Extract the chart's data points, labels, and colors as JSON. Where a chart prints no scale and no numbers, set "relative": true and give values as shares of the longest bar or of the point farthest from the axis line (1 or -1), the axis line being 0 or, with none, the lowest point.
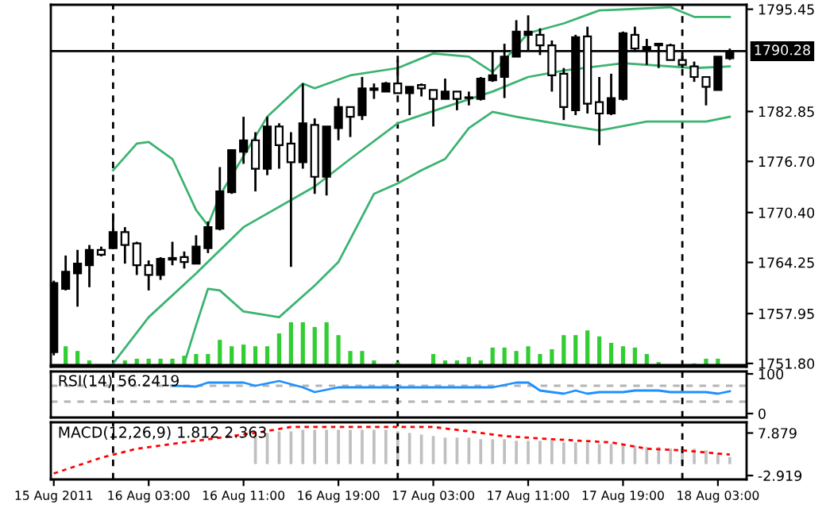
{
  "chart_data": [
    {
      "type": "candlestick",
      "x": [
        "2011-08-15T19:00",
        "2011-08-15T20:00",
        "2011-08-15T21:00",
        "2011-08-15T22:00",
        "2011-08-15T23:00",
        "2011-08-16T00:00",
        "2011-08-16T01:00",
        "2011-08-16T02:00",
        "2011-08-16T03:00",
        "2011-08-16T04:00",
        "2011-08-16T05:00",
        "2011-08-16T06:00",
        "2011-08-16T07:00",
        "2011-08-16T08:00",
        "2011-08-16T09:00",
        "2011-08-16T10:00",
        "2011-08-16T11:00",
        "2011-08-16T12:00",
        "2011-08-16T13:00",
        "2011-08-16T14:00",
        "2011-08-16T15:00",
        "2011-08-16T16:00",
        "2011-08-16T17:00",
        "2011-08-16T18:00",
        "2011-08-16T19:00",
        "2011-08-16T20:00",
        "2011-08-16T21:00",
        "2011-08-16T22:00",
        "2011-08-16T23:00",
        "2011-08-17T00:00",
        "2011-08-17T01:00",
        "2011-08-17T02:00",
        "2011-08-17T03:00",
        "2011-08-17T04:00",
        "2011-08-17T05:00",
        "2011-08-17T06:00",
        "2011-08-17T07:00",
        "2011-08-17T08:00",
        "2011-08-17T09:00",
        "2011-08-17T10:00",
        "2011-08-17T11:00",
        "2011-08-17T12:00",
        "2011-08-17T13:00",
        "2011-08-17T14:00",
        "2011-08-17T15:00",
        "2011-08-17T16:00",
        "2011-08-17T17:00",
        "2011-08-17T18:00",
        "2011-08-17T19:00",
        "2011-08-17T20:00",
        "2011-08-17T21:00",
        "2011-08-17T22:00",
        "2011-08-17T23:00",
        "2011-08-18T00:00",
        "2011-08-18T01:00",
        "2011-08-18T02:00",
        "2011-08-18T03:00",
        "2011-08-18T04:00"
      ],
      "ohlc": [
        [
          1753.2,
          1762.0,
          1752.8,
          1761.7
        ],
        [
          1761.0,
          1765.1,
          1760.8,
          1763.1
        ],
        [
          1762.9,
          1765.8,
          1758.8,
          1764.1
        ],
        [
          1763.9,
          1766.4,
          1761.2,
          1765.8
        ],
        [
          1765.8,
          1766.2,
          1765.0,
          1765.2
        ],
        [
          1766.0,
          1770.3,
          1765.9,
          1768.0
        ],
        [
          1768.0,
          1768.6,
          1764.1,
          1766.4
        ],
        [
          1766.6,
          1766.8,
          1762.7,
          1763.9
        ],
        [
          1763.9,
          1764.5,
          1760.8,
          1762.7
        ],
        [
          1762.7,
          1764.9,
          1762.1,
          1764.7
        ],
        [
          1764.6,
          1766.8,
          1763.9,
          1764.8
        ],
        [
          1764.9,
          1765.6,
          1763.5,
          1764.3
        ],
        [
          1764.1,
          1767.6,
          1764.1,
          1766.2
        ],
        [
          1766.0,
          1769.3,
          1765.4,
          1768.6
        ],
        [
          1768.4,
          1776.0,
          1768.2,
          1773.0
        ],
        [
          1772.9,
          1778.1,
          1772.7,
          1778.1
        ],
        [
          1777.9,
          1782.2,
          1776.4,
          1779.3
        ],
        [
          1779.3,
          1780.3,
          1773.0,
          1775.8
        ],
        [
          1775.8,
          1782.2,
          1775.0,
          1781.0
        ],
        [
          1781.0,
          1781.4,
          1775.8,
          1778.7
        ],
        [
          1778.9,
          1780.3,
          1763.7,
          1776.6
        ],
        [
          1776.6,
          1786.3,
          1775.8,
          1781.4
        ],
        [
          1781.2,
          1782.0,
          1772.7,
          1774.8
        ],
        [
          1774.8,
          1781.0,
          1772.5,
          1781.0
        ],
        [
          1780.8,
          1784.5,
          1779.3,
          1783.4
        ],
        [
          1783.4,
          1783.4,
          1779.7,
          1782.2
        ],
        [
          1782.4,
          1787.1,
          1781.8,
          1785.7
        ],
        [
          1785.5,
          1786.3,
          1784.4,
          1785.7
        ],
        [
          1785.3,
          1786.5,
          1785.3,
          1786.3
        ],
        [
          1786.3,
          1789.2,
          1785.1,
          1785.1
        ],
        [
          1785.1,
          1785.9,
          1782.4,
          1785.9
        ],
        [
          1786.1,
          1786.3,
          1784.7,
          1785.7
        ],
        [
          1785.5,
          1785.5,
          1781.0,
          1784.4
        ],
        [
          1784.4,
          1786.9,
          1784.4,
          1785.3
        ],
        [
          1785.3,
          1785.3,
          1783.0,
          1784.4
        ],
        [
          1784.5,
          1785.3,
          1783.6,
          1784.6
        ],
        [
          1784.4,
          1787.1,
          1784.2,
          1786.9
        ],
        [
          1786.7,
          1790.4,
          1786.5,
          1787.3
        ],
        [
          1787.1,
          1791.2,
          1784.5,
          1789.6
        ],
        [
          1789.6,
          1794.1,
          1789.6,
          1792.7
        ],
        [
          1792.3,
          1794.7,
          1790.4,
          1792.7
        ],
        [
          1792.3,
          1793.1,
          1789.8,
          1791.0
        ],
        [
          1791.0,
          1791.6,
          1785.3,
          1787.3
        ],
        [
          1787.5,
          1788.2,
          1781.8,
          1783.4
        ],
        [
          1783.0,
          1792.3,
          1782.4,
          1792.0
        ],
        [
          1792.1,
          1793.3,
          1782.6,
          1783.8
        ],
        [
          1784.0,
          1787.1,
          1778.7,
          1782.6
        ],
        [
          1782.6,
          1787.5,
          1782.4,
          1784.5
        ],
        [
          1784.4,
          1792.7,
          1784.2,
          1792.5
        ],
        [
          1792.3,
          1793.3,
          1790.2,
          1790.6
        ],
        [
          1790.4,
          1791.8,
          1788.6,
          1790.8
        ],
        [
          1791.0,
          1791.2,
          1788.2,
          1791.2
        ],
        [
          1791.0,
          1791.2,
          1789.2,
          1789.2
        ],
        [
          1789.2,
          1790.2,
          1788.2,
          1788.6
        ],
        [
          1788.4,
          1789.0,
          1786.5,
          1787.1
        ],
        [
          1787.1,
          1787.1,
          1783.6,
          1785.9
        ],
        [
          1785.5,
          1789.6,
          1785.5,
          1789.6
        ],
        [
          1789.4,
          1790.6,
          1789.2,
          1790.28
        ]
      ],
      "series": [
        {
          "type": "line",
          "color": "#3cb371",
          "x": [
            "2011-08-16T00:00",
            "2011-08-16T02:00",
            "2011-08-16T03:00",
            "2011-08-16T05:00",
            "2011-08-16T07:00",
            "2011-08-16T08:00",
            "2011-08-16T09:00",
            "2011-08-16T13:00",
            "2011-08-16T16:00",
            "2011-08-16T17:00",
            "2011-08-16T20:00",
            "2011-08-17T00:00",
            "2011-08-17T03:00",
            "2011-08-17T06:00",
            "2011-08-17T08:00",
            "2011-08-17T09:00",
            "2011-08-17T11:00",
            "2011-08-17T14:00",
            "2011-08-17T17:00",
            "2011-08-17T23:00",
            "2011-08-18T01:00",
            "2011-08-18T04:00"
          ],
          "values": [
            1775.6,
            1778.9,
            1779.1,
            1777.0,
            1770.7,
            1768.8,
            1772.5,
            1782.2,
            1786.3,
            1785.7,
            1787.3,
            1788.2,
            1790.0,
            1789.6,
            1787.7,
            1789.2,
            1792.5,
            1793.7,
            1795.3,
            1795.7,
            1794.5,
            1794.5
          ]
        },
        {
          "type": "line",
          "color": "#3cb371",
          "x": [
            "2011-08-16T00:00",
            "2011-08-16T03:00",
            "2011-08-16T07:00",
            "2011-08-16T11:00",
            "2011-08-16T17:00",
            "2011-08-16T20:00",
            "2011-08-17T00:00",
            "2011-08-17T04:00",
            "2011-08-17T08:00",
            "2011-08-17T11:00",
            "2011-08-17T14:00",
            "2011-08-17T19:00",
            "2011-08-18T01:00",
            "2011-08-18T04:00"
          ],
          "values": [
            1751.8,
            1757.5,
            1762.9,
            1768.6,
            1773.6,
            1777.0,
            1781.4,
            1783.4,
            1785.3,
            1787.1,
            1787.9,
            1788.8,
            1788.2,
            1788.4
          ]
        },
        {
          "type": "line",
          "color": "#3cb371",
          "x": [
            "2011-08-16T06:00",
            "2011-08-16T07:00",
            "2011-08-16T08:00",
            "2011-08-16T09:00",
            "2011-08-16T11:00",
            "2011-08-16T14:00",
            "2011-08-16T17:00",
            "2011-08-16T19:00",
            "2011-08-16T22:00",
            "2011-08-17T00:00",
            "2011-08-17T02:00",
            "2011-08-17T04:00",
            "2011-08-17T06:00",
            "2011-08-17T08:00",
            "2011-08-17T10:00",
            "2011-08-17T14:00",
            "2011-08-17T17:00",
            "2011-08-17T21:00",
            "2011-08-18T02:00",
            "2011-08-18T04:00"
          ],
          "values": [
            1751.8,
            1756.5,
            1761.0,
            1760.8,
            1758.2,
            1757.5,
            1761.4,
            1764.3,
            1772.7,
            1774.0,
            1775.6,
            1777.0,
            1780.8,
            1782.8,
            1782.2,
            1781.2,
            1780.5,
            1781.6,
            1781.6,
            1782.2
          ]
        }
      ],
      "xlim": [
        "2011-08-15T18:45",
        "2011-08-18T05:25"
      ],
      "ylim": [
        1751.4,
        1796.0
      ],
      "yticks": [
        1795.45,
        1782.85,
        {
          "value": 1776.7,
          "label": "1776.70"
        },
        {
          "value": 1770.4,
          "label": "1770.40"
        },
        1764.25,
        1757.95,
        {
          "value": 1751.8,
          "label": "1751.80"
        }
      ],
      "ref_lines": [
        {
          "axis": "y",
          "value": 1790.28,
          "label": "1790.28",
          "color": "#000000",
          "line_style": "solid"
        },
        {
          "axis": "x",
          "value": "2011-08-16T00:00",
          "color": "#000000",
          "line_style": "dashed"
        },
        {
          "axis": "x",
          "value": "2011-08-17T00:00",
          "color": "#000000",
          "line_style": "dashed"
        },
        {
          "axis": "x",
          "value": "2011-08-18T00:00",
          "color": "#000000",
          "line_style": "dashed"
        }
      ],
      "tick_labels": "y"
    },
    {
      "type": "bar",
      "relative": true,
      "color": "#32cd32",
      "x": [
        "2011-08-15T20:00",
        "2011-08-15T21:00",
        "2011-08-15T22:00",
        "2011-08-15T23:00",
        "2011-08-16T00:00",
        "2011-08-16T01:00",
        "2011-08-16T02:00",
        "2011-08-16T03:00",
        "2011-08-16T04:00",
        "2011-08-16T05:00",
        "2011-08-16T06:00",
        "2011-08-16T07:00",
        "2011-08-16T08:00",
        "2011-08-16T09:00",
        "2011-08-16T10:00",
        "2011-08-16T11:00",
        "2011-08-16T12:00",
        "2011-08-16T13:00",
        "2011-08-16T14:00",
        "2011-08-16T15:00",
        "2011-08-16T16:00",
        "2011-08-16T17:00",
        "2011-08-16T18:00",
        "2011-08-16T19:00",
        "2011-08-16T20:00",
        "2011-08-16T21:00",
        "2011-08-16T22:00",
        "2011-08-16T23:00",
        "2011-08-17T00:00",
        "2011-08-17T01:00",
        "2011-08-17T02:00",
        "2011-08-17T03:00",
        "2011-08-17T04:00",
        "2011-08-17T05:00",
        "2011-08-17T06:00",
        "2011-08-17T07:00",
        "2011-08-17T08:00",
        "2011-08-17T09:00",
        "2011-08-17T10:00",
        "2011-08-17T11:00",
        "2011-08-17T12:00",
        "2011-08-17T13:00",
        "2011-08-17T14:00",
        "2011-08-17T15:00",
        "2011-08-17T16:00",
        "2011-08-17T17:00",
        "2011-08-17T18:00",
        "2011-08-17T19:00",
        "2011-08-17T20:00",
        "2011-08-17T21:00",
        "2011-08-17T22:00",
        "2011-08-17T23:00",
        "2011-08-18T00:00",
        "2011-08-18T01:00",
        "2011-08-18T02:00",
        "2011-08-18T03:00"
      ],
      "values": [
        0.44,
        0.33,
        0.11,
        null,
        null,
        0.11,
        0.15,
        0.15,
        0.15,
        0.15,
        0.22,
        0.26,
        0.26,
        0.59,
        0.44,
        0.48,
        0.44,
        0.44,
        0.74,
        1,
        1,
        0.89,
        1,
        0.7,
        0.33,
        0.33,
        0.11,
        null,
        0.07,
        null,
        null,
        0.26,
        0.11,
        0.11,
        0.19,
        0.11,
        0.41,
        0.41,
        0.33,
        0.44,
        0.26,
        0.37,
        0.7,
        0.7,
        0.81,
        0.67,
        0.52,
        0.44,
        0.41,
        0.26,
        0.07,
        null,
        null,
        0.04,
        0.15,
        0.15
      ],
      "xlim": [
        "2011-08-15T18:45",
        "2011-08-18T05:25"
      ],
      "tick_labels": false
    },
    {
      "type": "line",
      "title": "RSI(14) 56.2419",
      "series": [
        {
          "color": "#1e90ff",
          "x": [
            "2011-08-16T05:00",
            "2011-08-16T07:00",
            "2011-08-16T08:00",
            "2011-08-16T11:00",
            "2011-08-16T12:00",
            "2011-08-16T14:00",
            "2011-08-16T16:00",
            "2011-08-16T17:00",
            "2011-08-16T19:00",
            "2011-08-16T23:00",
            "2011-08-17T03:00",
            "2011-08-17T08:00",
            "2011-08-17T10:00",
            "2011-08-17T11:00",
            "2011-08-17T12:00",
            "2011-08-17T14:00",
            "2011-08-17T15:00",
            "2011-08-17T16:00",
            "2011-08-17T17:00",
            "2011-08-17T19:00",
            "2011-08-17T20:00",
            "2011-08-17T22:00",
            "2011-08-17T23:00",
            "2011-08-18T02:00",
            "2011-08-18T03:00",
            "2011-08-18T04:00"
          ],
          "values": [
            70,
            68,
            78,
            78,
            70,
            82,
            66,
            54,
            66,
            66,
            66,
            66,
            78,
            78,
            58,
            50,
            58,
            50,
            54,
            54,
            58,
            58,
            54,
            54,
            50,
            56
          ]
        }
      ],
      "xlim": [
        "2011-08-15T18:45",
        "2011-08-18T05:25"
      ],
      "ylim": [
        -10,
        106
      ],
      "yticks": [
        0,
        100
      ],
      "ref_lines": [
        {
          "axis": "y",
          "value": 70,
          "color": "#b4b4b4",
          "line_style": "dashed"
        },
        {
          "axis": "y",
          "value": 30,
          "color": "#b4b4b4",
          "line_style": "dashed"
        },
        {
          "axis": "x",
          "value": "2011-08-16T00:00",
          "color": "#000000",
          "line_style": "dashed"
        },
        {
          "axis": "x",
          "value": "2011-08-17T00:00",
          "color": "#000000",
          "line_style": "dashed"
        },
        {
          "axis": "x",
          "value": "2011-08-18T00:00",
          "color": "#000000",
          "line_style": "dashed"
        }
      ],
      "tick_labels": "y"
    },
    {
      "type": "bar",
      "title": "MACD(12,26,9) 1.812 2.363",
      "series": [
        {
          "type": "bar",
          "color": "#c0c0c0",
          "x": [
            "2011-08-16T12:00",
            "2011-08-16T13:00",
            "2011-08-16T14:00",
            "2011-08-16T15:00",
            "2011-08-16T16:00",
            "2011-08-16T17:00",
            "2011-08-16T18:00",
            "2011-08-16T19:00",
            "2011-08-16T20:00",
            "2011-08-16T21:00",
            "2011-08-16T22:00",
            "2011-08-16T23:00",
            "2011-08-17T00:00",
            "2011-08-17T01:00",
            "2011-08-17T02:00",
            "2011-08-17T03:00",
            "2011-08-17T04:00",
            "2011-08-17T05:00",
            "2011-08-17T06:00",
            "2011-08-17T07:00",
            "2011-08-17T08:00",
            "2011-08-17T09:00",
            "2011-08-17T10:00",
            "2011-08-17T11:00",
            "2011-08-17T12:00",
            "2011-08-17T13:00",
            "2011-08-17T14:00",
            "2011-08-17T15:00",
            "2011-08-17T16:00",
            "2011-08-17T17:00",
            "2011-08-17T18:00",
            "2011-08-17T19:00",
            "2011-08-17T20:00",
            "2011-08-17T21:00",
            "2011-08-17T22:00",
            "2011-08-17T23:00",
            "2011-08-18T00:00",
            "2011-08-18T01:00",
            "2011-08-18T02:00",
            "2011-08-18T03:00",
            "2011-08-18T04:00"
          ],
          "values": [
            7.5,
            7.9,
            8.3,
            8.3,
            8.7,
            8.7,
            8.7,
            8.7,
            8.7,
            8.7,
            8.7,
            8.7,
            8.3,
            7.9,
            7.5,
            7.1,
            6.7,
            6.7,
            6.7,
            6.3,
            6.3,
            6.3,
            5.9,
            5.9,
            5.9,
            5.9,
            5.5,
            5.5,
            5.5,
            5.1,
            5.1,
            4.7,
            4.7,
            4.3,
            4.3,
            3.9,
            3.9,
            3.9,
            3.5,
            2.8,
            1.8
          ]
        },
        {
          "type": "line",
          "color": "#ff0000",
          "line_style": "dotted",
          "x": [
            "2011-08-15T19:00",
            "2011-08-15T23:00",
            "2011-08-16T02:00",
            "2011-08-16T12:00",
            "2011-08-16T15:00",
            "2011-08-17T03:00",
            "2011-08-17T06:00",
            "2011-08-17T09:00",
            "2011-08-17T13:00",
            "2011-08-17T18:00",
            "2011-08-17T21:00",
            "2011-08-18T00:00",
            "2011-08-18T04:00"
          ],
          "values": [
            -2.4,
            1.6,
            3.9,
            7.9,
            9.4,
            9.4,
            8.3,
            7.1,
            6.3,
            5.5,
            3.9,
            3.5,
            2.4
          ]
        }
      ],
      "xlim": [
        "2011-08-15T18:45",
        "2011-08-18T05:25"
      ],
      "ylim": [
        -3.9,
        10.6
      ],
      "yticks": [
        7.879,
        -2.919
      ],
      "xticks": [
        {
          "value": "2011-08-15T19:00",
          "label": "15 Aug 2011"
        },
        {
          "value": "2011-08-16T03:00",
          "label": "16 Aug 03:00"
        },
        {
          "value": "2011-08-16T11:00",
          "label": "16 Aug 11:00"
        },
        {
          "value": "2011-08-16T19:00",
          "label": "16 Aug 19:00"
        },
        {
          "value": "2011-08-17T03:00",
          "label": "17 Aug 03:00"
        },
        {
          "value": "2011-08-17T11:00",
          "label": "17 Aug 11:00"
        },
        {
          "value": "2011-08-17T19:00",
          "label": "17 Aug 19:00"
        },
        {
          "value": "2011-08-18T03:00",
          "label": "18 Aug 03:00"
        }
      ],
      "ref_lines": [
        {
          "axis": "x",
          "value": "2011-08-16T00:00",
          "color": "#000000",
          "line_style": "dashed"
        },
        {
          "axis": "x",
          "value": "2011-08-17T00:00",
          "color": "#000000",
          "line_style": "dashed"
        },
        {
          "axis": "x",
          "value": "2011-08-18T00:00",
          "color": "#000000",
          "line_style": "dashed"
        }
      ]
    }
  ]
}
